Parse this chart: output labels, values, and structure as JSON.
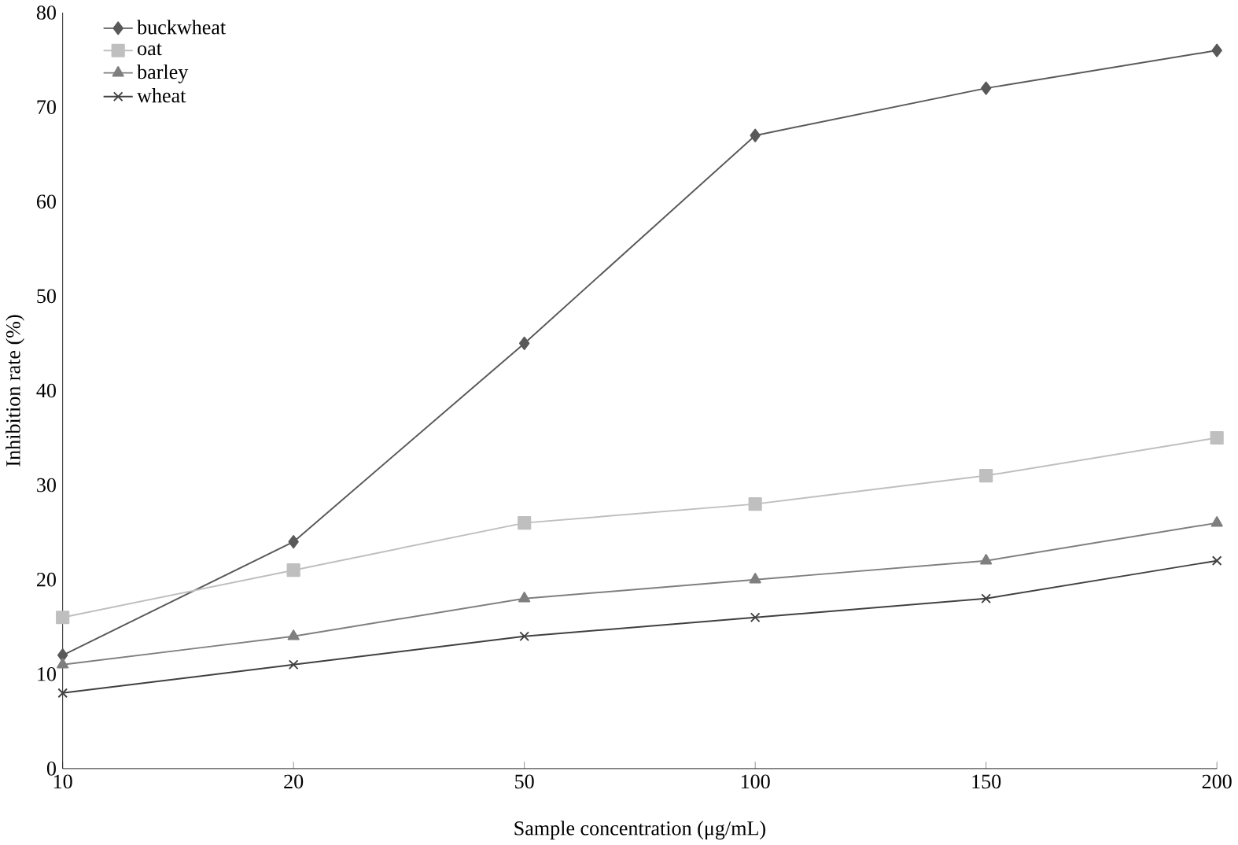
{
  "chart_data": {
    "type": "line",
    "xlabel": "Sample concentration (μg/mL)",
    "ylabel": "Inhibition rate (%)",
    "categories": [
      "10",
      "20",
      "50",
      "100",
      "150",
      "200"
    ],
    "ylim": [
      0,
      80
    ],
    "yticks": [
      0,
      10,
      20,
      30,
      40,
      50,
      60,
      70,
      80
    ],
    "legend": "top left",
    "grid": false,
    "line_style": "solid",
    "series": [
      {
        "name": "buckwheat",
        "color": "#595959",
        "marker": "diamond",
        "values": [
          12,
          24,
          45,
          67,
          72,
          76
        ]
      },
      {
        "name": "oat",
        "color": "#bfbfbf",
        "marker": "square",
        "values": [
          16,
          21,
          26,
          28,
          31,
          35
        ]
      },
      {
        "name": "barley",
        "color": "#7f7f7f",
        "marker": "triangle",
        "values": [
          11,
          14,
          18,
          20,
          22,
          26
        ]
      },
      {
        "name": "wheat",
        "color": "#404040",
        "marker": "cross",
        "values": [
          8,
          11,
          14,
          16,
          18,
          22
        ]
      }
    ]
  }
}
